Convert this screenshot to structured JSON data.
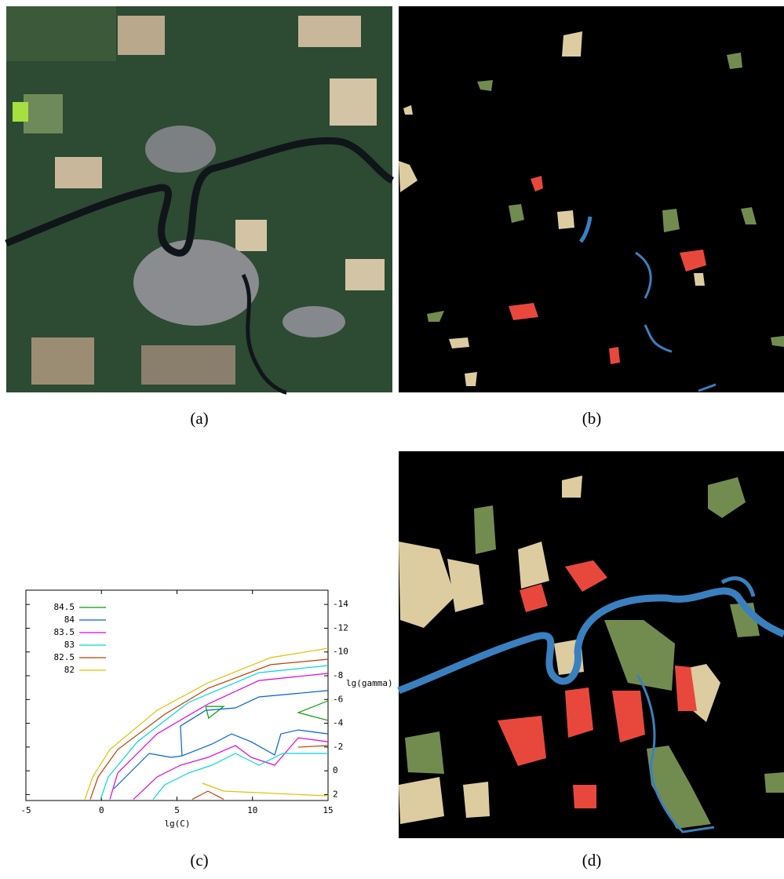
{
  "captions": [
    "(a)",
    "(b)",
    "(c)",
    "(d)"
  ],
  "chart_data": {
    "type": "line",
    "xlabel": "lg(C)",
    "ylabel": "lg(gamma)",
    "xlim": [
      -5,
      15
    ],
    "ylim": [
      -15.2,
      2.5
    ],
    "y_inverted": true,
    "y_axis_side": "right",
    "xticks": [
      -5,
      0,
      5,
      10,
      15
    ],
    "yticks": [
      -14,
      -12,
      -10,
      -8,
      -6,
      -4,
      -2,
      0,
      2
    ],
    "legend": "upper left",
    "series": [
      {
        "name": "84.5",
        "color": "#00a000",
        "x": [
          6.9,
          8.09,
          7.1,
          6.9,
          null,
          15,
          13.03,
          15
        ],
        "y": [
          -5.42,
          -5.42,
          -4.43,
          -5.42,
          null,
          -5.89,
          -4.9,
          -4.24
        ]
      },
      {
        "name": "84",
        "color": "#0060e0",
        "x": [
          0.82,
          3.16,
          4.61,
          5.34,
          5.23,
          6.9,
          8.87,
          10.43,
          15,
          null,
          5.34,
          7.31,
          8.61,
          9.91,
          11.47,
          11.88,
          13.03,
          15
        ],
        "y": [
          1.51,
          -1.46,
          -1.13,
          -1.26,
          -3.77,
          -5.09,
          -5.29,
          -6.22,
          -6.75,
          null,
          -1.26,
          -2.25,
          -3.11,
          -2.45,
          -1.33,
          -3.11,
          -3.44,
          -3.11
        ]
      },
      {
        "name": "83.5",
        "color": "#e000e0",
        "x": [
          0.56,
          1.08,
          3.68,
          7.05,
          10.43,
          15,
          null,
          2.12,
          3.68,
          5.23,
          7.05,
          8.87,
          9.91,
          11.47,
          13.03,
          15
        ],
        "y": [
          2.4,
          0.19,
          -3.11,
          -5.62,
          -7.6,
          -8.2,
          null,
          2.4,
          0.52,
          -0.47,
          -1.13,
          -2.12,
          -1.13,
          -0.47,
          -2.78,
          -2.45
        ]
      },
      {
        "name": "83",
        "color": "#00d8d8",
        "x": [
          -0.06,
          0.45,
          2.38,
          5.75,
          10.43,
          15,
          null,
          3.42,
          4.19,
          5.75,
          7.31,
          8.87,
          10.43,
          11.99,
          15
        ],
        "y": [
          2.4,
          0.52,
          -2.45,
          -5.75,
          -8.26,
          -8.86,
          null,
          2.4,
          1.18,
          0.19,
          -0.47,
          -1.46,
          -0.47,
          -1.46,
          -1.46
        ]
      },
      {
        "name": "82.5",
        "color": "#c04000",
        "x": [
          -0.74,
          -0.22,
          1.08,
          4.19,
          7.05,
          11.2,
          15,
          null,
          6.01,
          7.05,
          8.09,
          null,
          13.03,
          15
        ],
        "y": [
          2.4,
          0.52,
          -1.79,
          -4.76,
          -6.94,
          -8.93,
          -9.39,
          null,
          2.4,
          1.71,
          2.4,
          null,
          -1.99,
          -2.12
        ]
      },
      {
        "name": "82",
        "color": "#e0c000",
        "x": [
          -1.1,
          -0.58,
          0.56,
          3.68,
          7.05,
          11.2,
          15,
          null,
          6.69,
          8.09,
          15
        ],
        "y": [
          2.4,
          0.52,
          -1.79,
          -5.09,
          -7.41,
          -9.52,
          -10.31,
          null,
          1.05,
          1.71,
          2.11
        ]
      }
    ]
  }
}
